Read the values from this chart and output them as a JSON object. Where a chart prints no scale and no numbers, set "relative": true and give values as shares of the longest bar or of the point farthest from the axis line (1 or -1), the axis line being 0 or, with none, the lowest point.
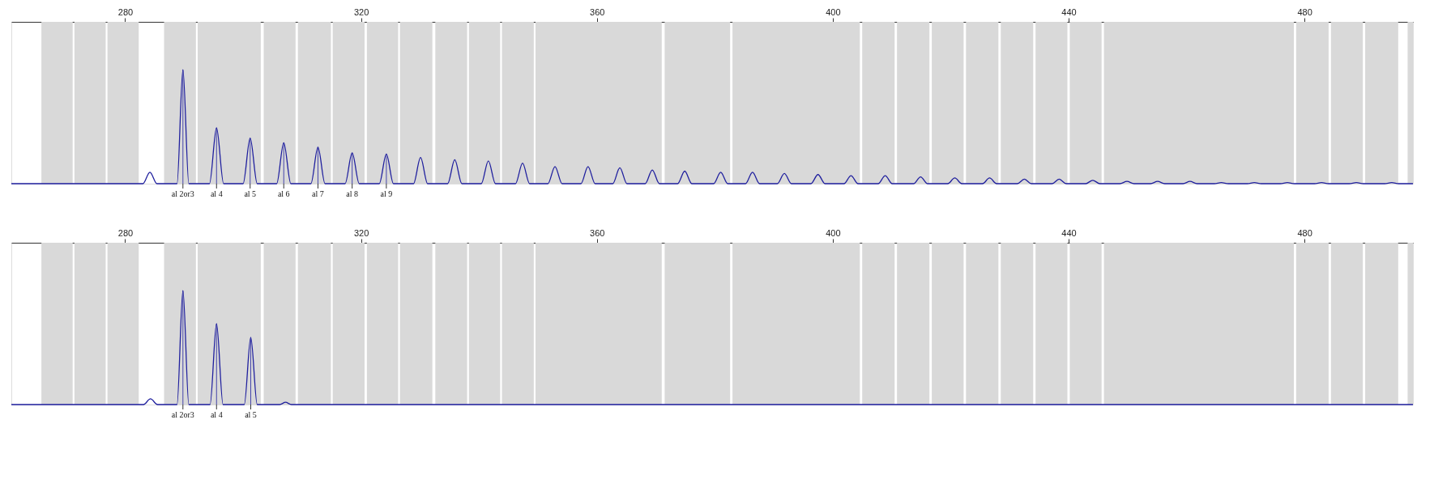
{
  "chart_data": [
    {
      "type": "line",
      "relative": true,
      "grid": false,
      "xlim": [
        260.7,
        498.4
      ],
      "xticks": [
        280,
        320,
        360,
        400,
        440,
        480
      ],
      "series": [
        {
          "color": "#1f1f9e",
          "x": [
            260.7,
            283.0,
            284.2,
            285.4,
            288.8,
            289.8,
            290.8,
            294.3,
            295.5,
            296.7,
            300.0,
            301.2,
            302.4,
            305.7,
            306.9,
            308.1,
            311.5,
            312.7,
            313.9,
            317.3,
            318.5,
            319.7,
            323.1,
            324.3,
            325.5,
            328.9,
            330.1,
            331.3,
            334.7,
            335.9,
            337.1,
            340.4,
            341.6,
            342.8,
            346.2,
            347.4,
            348.6,
            351.7,
            352.9,
            354.1,
            357.3,
            358.5,
            359.7,
            362.7,
            363.9,
            365.1,
            368.2,
            369.4,
            370.6,
            373.7,
            374.9,
            376.1,
            379.8,
            381.0,
            382.2,
            385.2,
            386.4,
            387.6,
            390.6,
            391.8,
            393.0,
            396.3,
            397.5,
            398.7,
            401.9,
            403.1,
            404.3,
            407.7,
            408.9,
            410.1,
            413.7,
            414.9,
            416.1,
            419.5,
            420.7,
            421.9,
            425.4,
            426.6,
            427.8,
            431.3,
            432.5,
            433.7,
            437.2,
            438.4,
            439.6,
            442.9,
            444.1,
            445.3,
            448.7,
            449.9,
            451.1,
            453.9,
            455.1,
            456.3,
            459.4,
            460.6,
            461.8,
            464.7,
            465.9,
            467.1,
            470.3,
            471.5,
            472.7,
            475.9,
            477.1,
            478.3,
            481.7,
            482.9,
            484.1,
            487.6,
            488.8,
            490.0,
            493.6,
            494.8,
            496.0,
            498.4
          ],
          "values": [
            0,
            0,
            0.1,
            0,
            0,
            1,
            0,
            0,
            0.49,
            0,
            0,
            0.4,
            0,
            0,
            0.36,
            0,
            0,
            0.32,
            0,
            0,
            0.27,
            0,
            0,
            0.26,
            0,
            0,
            0.23,
            0,
            0,
            0.21,
            0,
            0,
            0.2,
            0,
            0,
            0.18,
            0,
            0,
            0.15,
            0,
            0,
            0.15,
            0,
            0,
            0.14,
            0,
            0,
            0.12,
            0,
            0,
            0.11,
            0,
            0,
            0.1,
            0,
            0,
            0.1,
            0,
            0,
            0.09,
            0,
            0,
            0.08,
            0,
            0,
            0.07,
            0,
            0,
            0.07,
            0,
            0,
            0.06,
            0,
            0,
            0.05,
            0,
            0,
            0.05,
            0,
            0,
            0.04,
            0,
            0,
            0.04,
            0,
            0,
            0.03,
            0,
            0,
            0.02,
            0,
            0,
            0.02,
            0,
            0,
            0.02,
            0,
            0,
            0.01,
            0,
            0,
            0.01,
            0,
            0,
            0.01,
            0,
            0,
            0.01,
            0,
            0,
            0.01,
            0,
            0,
            0.01,
            0,
            0
          ]
        }
      ],
      "bands": [
        {
          "axis": "x",
          "from": 265.8,
          "to": 271.1,
          "color": "#d9d9d9"
        },
        {
          "axis": "x",
          "from": 271.4,
          "to": 276.7,
          "color": "#d9d9d9"
        },
        {
          "axis": "x",
          "from": 277.0,
          "to": 282.3,
          "color": "#d9d9d9"
        },
        {
          "axis": "x",
          "from": 286.6,
          "to": 292.0,
          "color": "#d9d9d9"
        },
        {
          "axis": "x",
          "from": 292.3,
          "to": 303.0,
          "color": "#d9d9d9"
        },
        {
          "axis": "x",
          "from": 303.5,
          "to": 308.9,
          "color": "#d9d9d9"
        },
        {
          "axis": "x",
          "from": 309.3,
          "to": 314.9,
          "color": "#d9d9d9"
        },
        {
          "axis": "x",
          "from": 315.2,
          "to": 320.6,
          "color": "#d9d9d9"
        },
        {
          "axis": "x",
          "from": 321.0,
          "to": 326.3,
          "color": "#d9d9d9"
        },
        {
          "axis": "x",
          "from": 326.6,
          "to": 332.1,
          "color": "#d9d9d9"
        },
        {
          "axis": "x",
          "from": 332.6,
          "to": 338.0,
          "color": "#d9d9d9"
        },
        {
          "axis": "x",
          "from": 338.3,
          "to": 343.6,
          "color": "#d9d9d9"
        },
        {
          "axis": "x",
          "from": 343.9,
          "to": 349.3,
          "color": "#d9d9d9"
        },
        {
          "axis": "x",
          "from": 349.6,
          "to": 371.0,
          "color": "#d9d9d9"
        },
        {
          "axis": "x",
          "from": 371.5,
          "to": 382.6,
          "color": "#d9d9d9"
        },
        {
          "axis": "x",
          "from": 383.0,
          "to": 404.6,
          "color": "#d9d9d9"
        },
        {
          "axis": "x",
          "from": 405.0,
          "to": 410.5,
          "color": "#d9d9d9"
        },
        {
          "axis": "x",
          "from": 410.9,
          "to": 416.4,
          "color": "#d9d9d9"
        },
        {
          "axis": "x",
          "from": 416.8,
          "to": 422.2,
          "color": "#d9d9d9"
        },
        {
          "axis": "x",
          "from": 422.6,
          "to": 428.1,
          "color": "#d9d9d9"
        },
        {
          "axis": "x",
          "from": 428.5,
          "to": 434.0,
          "color": "#d9d9d9"
        },
        {
          "axis": "x",
          "from": 434.4,
          "to": 439.8,
          "color": "#d9d9d9"
        },
        {
          "axis": "x",
          "from": 440.2,
          "to": 445.6,
          "color": "#d9d9d9"
        },
        {
          "axis": "x",
          "from": 446.0,
          "to": 478.2,
          "color": "#d9d9d9"
        },
        {
          "axis": "x",
          "from": 478.6,
          "to": 484.1,
          "color": "#d9d9d9"
        },
        {
          "axis": "x",
          "from": 484.5,
          "to": 489.9,
          "color": "#d9d9d9"
        },
        {
          "axis": "x",
          "from": 490.3,
          "to": 495.9,
          "color": "#d9d9d9"
        },
        {
          "axis": "x",
          "from": 497.5,
          "to": 498.4,
          "color": "#d9d9d9"
        }
      ],
      "annotations": [
        {
          "text": "al 2or3",
          "x": 289.8,
          "y": 1
        },
        {
          "text": "al 4",
          "x": 295.5,
          "y": 0.49
        },
        {
          "text": "al 5",
          "x": 301.2,
          "y": 0.4
        },
        {
          "text": "al 6",
          "x": 306.9,
          "y": 0.36
        },
        {
          "text": "al 7",
          "x": 312.7,
          "y": 0.32
        },
        {
          "text": "al 8",
          "x": 318.5,
          "y": 0.27
        },
        {
          "text": "al 9",
          "x": 324.3,
          "y": 0.26
        }
      ]
    },
    {
      "type": "line",
      "relative": true,
      "grid": false,
      "xlim": [
        260.7,
        498.4
      ],
      "xticks": [
        280,
        320,
        360,
        400,
        440,
        480
      ],
      "series": [
        {
          "color": "#1f1f9e",
          "x": [
            260.7,
            283.1,
            284.3,
            285.5,
            288.8,
            289.8,
            290.8,
            294.4,
            295.5,
            296.6,
            300.2,
            301.3,
            302.4,
            306.2,
            307.2,
            308.2,
            498.4
          ],
          "values": [
            0,
            0,
            0.05,
            0,
            0,
            1,
            0,
            0,
            0.71,
            0,
            0,
            0.59,
            0,
            0,
            0.02,
            0,
            0
          ]
        }
      ],
      "bands": [
        {
          "axis": "x",
          "from": 265.8,
          "to": 271.1,
          "color": "#d9d9d9"
        },
        {
          "axis": "x",
          "from": 271.4,
          "to": 276.7,
          "color": "#d9d9d9"
        },
        {
          "axis": "x",
          "from": 277.0,
          "to": 282.3,
          "color": "#d9d9d9"
        },
        {
          "axis": "x",
          "from": 286.6,
          "to": 292.0,
          "color": "#d9d9d9"
        },
        {
          "axis": "x",
          "from": 292.3,
          "to": 303.0,
          "color": "#d9d9d9"
        },
        {
          "axis": "x",
          "from": 303.5,
          "to": 308.9,
          "color": "#d9d9d9"
        },
        {
          "axis": "x",
          "from": 309.3,
          "to": 314.9,
          "color": "#d9d9d9"
        },
        {
          "axis": "x",
          "from": 315.2,
          "to": 320.6,
          "color": "#d9d9d9"
        },
        {
          "axis": "x",
          "from": 321.0,
          "to": 326.3,
          "color": "#d9d9d9"
        },
        {
          "axis": "x",
          "from": 326.6,
          "to": 332.1,
          "color": "#d9d9d9"
        },
        {
          "axis": "x",
          "from": 332.6,
          "to": 338.0,
          "color": "#d9d9d9"
        },
        {
          "axis": "x",
          "from": 338.3,
          "to": 343.6,
          "color": "#d9d9d9"
        },
        {
          "axis": "x",
          "from": 343.9,
          "to": 349.3,
          "color": "#d9d9d9"
        },
        {
          "axis": "x",
          "from": 349.6,
          "to": 371.0,
          "color": "#d9d9d9"
        },
        {
          "axis": "x",
          "from": 371.5,
          "to": 382.6,
          "color": "#d9d9d9"
        },
        {
          "axis": "x",
          "from": 383.0,
          "to": 404.6,
          "color": "#d9d9d9"
        },
        {
          "axis": "x",
          "from": 405.0,
          "to": 410.5,
          "color": "#d9d9d9"
        },
        {
          "axis": "x",
          "from": 410.9,
          "to": 416.4,
          "color": "#d9d9d9"
        },
        {
          "axis": "x",
          "from": 416.8,
          "to": 422.2,
          "color": "#d9d9d9"
        },
        {
          "axis": "x",
          "from": 422.6,
          "to": 428.1,
          "color": "#d9d9d9"
        },
        {
          "axis": "x",
          "from": 428.5,
          "to": 434.0,
          "color": "#d9d9d9"
        },
        {
          "axis": "x",
          "from": 434.4,
          "to": 439.8,
          "color": "#d9d9d9"
        },
        {
          "axis": "x",
          "from": 440.2,
          "to": 445.6,
          "color": "#d9d9d9"
        },
        {
          "axis": "x",
          "from": 446.0,
          "to": 478.2,
          "color": "#d9d9d9"
        },
        {
          "axis": "x",
          "from": 478.6,
          "to": 484.1,
          "color": "#d9d9d9"
        },
        {
          "axis": "x",
          "from": 484.5,
          "to": 489.9,
          "color": "#d9d9d9"
        },
        {
          "axis": "x",
          "from": 490.3,
          "to": 495.9,
          "color": "#d9d9d9"
        },
        {
          "axis": "x",
          "from": 497.5,
          "to": 498.4,
          "color": "#d9d9d9"
        }
      ],
      "annotations": [
        {
          "text": "al 2or3",
          "x": 289.8,
          "y": 1
        },
        {
          "text": "al 4",
          "x": 295.5,
          "y": 0.71
        },
        {
          "text": "al 5",
          "x": 301.3,
          "y": 0.59
        }
      ]
    }
  ]
}
